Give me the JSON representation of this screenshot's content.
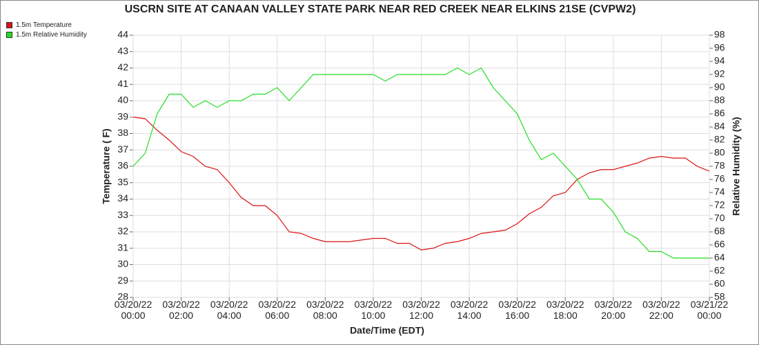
{
  "chart_data": {
    "type": "line",
    "title": "USCRN SITE AT CANAAN VALLEY STATE PARK NEAR RED CREEK NEAR ELKINS 21SE (CVPW2)",
    "xlabel": "Date/Time (EDT)",
    "ylabel": "Temperature ( F)",
    "y2label": "Relative Humidity (%)",
    "x": [
      "03/20/22 00:00",
      "03/20/22 00:30",
      "03/20/22 01:00",
      "03/20/22 01:30",
      "03/20/22 02:00",
      "03/20/22 02:30",
      "03/20/22 03:00",
      "03/20/22 03:30",
      "03/20/22 04:00",
      "03/20/22 04:30",
      "03/20/22 05:00",
      "03/20/22 05:30",
      "03/20/22 06:00",
      "03/20/22 06:30",
      "03/20/22 07:00",
      "03/20/22 07:30",
      "03/20/22 08:00",
      "03/20/22 08:30",
      "03/20/22 09:00",
      "03/20/22 09:30",
      "03/20/22 10:00",
      "03/20/22 10:30",
      "03/20/22 11:00",
      "03/20/22 11:30",
      "03/20/22 12:00",
      "03/20/22 12:30",
      "03/20/22 13:00",
      "03/20/22 13:30",
      "03/20/22 14:00",
      "03/20/22 14:30",
      "03/20/22 15:00",
      "03/20/22 15:30",
      "03/20/22 16:00",
      "03/20/22 16:30",
      "03/20/22 17:00",
      "03/20/22 17:30",
      "03/20/22 18:00",
      "03/20/22 18:30",
      "03/20/22 19:00",
      "03/20/22 19:30",
      "03/20/22 20:00",
      "03/20/22 20:30",
      "03/20/22 21:00",
      "03/20/22 21:30",
      "03/20/22 22:00",
      "03/20/22 22:30",
      "03/20/22 23:00",
      "03/20/22 23:30",
      "03/21/22 00:00"
    ],
    "series": [
      {
        "name": "1.5m Temperature",
        "color": "#dd1111",
        "values": [
          39.0,
          38.9,
          38.2,
          37.6,
          36.9,
          36.6,
          36.0,
          35.8,
          35.0,
          34.1,
          33.6,
          33.6,
          33.0,
          32.0,
          31.9,
          31.6,
          31.4,
          31.4,
          31.4,
          31.5,
          31.6,
          31.6,
          31.3,
          31.3,
          30.9,
          31.0,
          31.3,
          31.4,
          31.6,
          31.9,
          32.0,
          32.1,
          32.5,
          33.1,
          33.5,
          34.2,
          34.4,
          35.2,
          35.6,
          35.8,
          35.8,
          36.0,
          36.2,
          36.5,
          36.6,
          36.5,
          36.5,
          36.0,
          35.7
        ]
      },
      {
        "name": "1.5m Relative Humidity",
        "color": "#22dd22",
        "axis": "y2",
        "values": [
          78,
          80,
          86,
          89,
          89,
          87,
          88,
          87,
          88,
          88,
          89,
          89,
          90,
          88,
          90,
          92,
          92,
          92,
          92,
          92,
          92,
          91,
          92,
          92,
          92,
          92,
          92,
          93,
          92,
          93,
          90,
          88,
          86,
          82,
          79,
          80,
          78,
          76,
          73,
          73,
          71,
          68,
          67,
          65,
          65,
          64,
          64,
          64,
          64
        ]
      }
    ],
    "xlim": [
      "03/20/22 00:00",
      "03/21/22 00:00"
    ],
    "xticks": [
      "03/20/22 00:00",
      "03/20/22 02:00",
      "03/20/22 04:00",
      "03/20/22 06:00",
      "03/20/22 08:00",
      "03/20/22 10:00",
      "03/20/22 12:00",
      "03/20/22 14:00",
      "03/20/22 16:00",
      "03/20/22 18:00",
      "03/20/22 20:00",
      "03/20/22 22:00",
      "03/21/22 00:00"
    ],
    "ylim": [
      28,
      44
    ],
    "yticks": [
      28,
      29,
      30,
      31,
      32,
      33,
      34,
      35,
      36,
      37,
      38,
      39,
      40,
      41,
      42,
      43,
      44
    ],
    "y2lim": [
      58,
      98
    ],
    "y2ticks": [
      58,
      60,
      62,
      64,
      66,
      68,
      70,
      72,
      74,
      76,
      78,
      80,
      82,
      84,
      86,
      88,
      90,
      92,
      94,
      96,
      98
    ],
    "grid": true
  }
}
